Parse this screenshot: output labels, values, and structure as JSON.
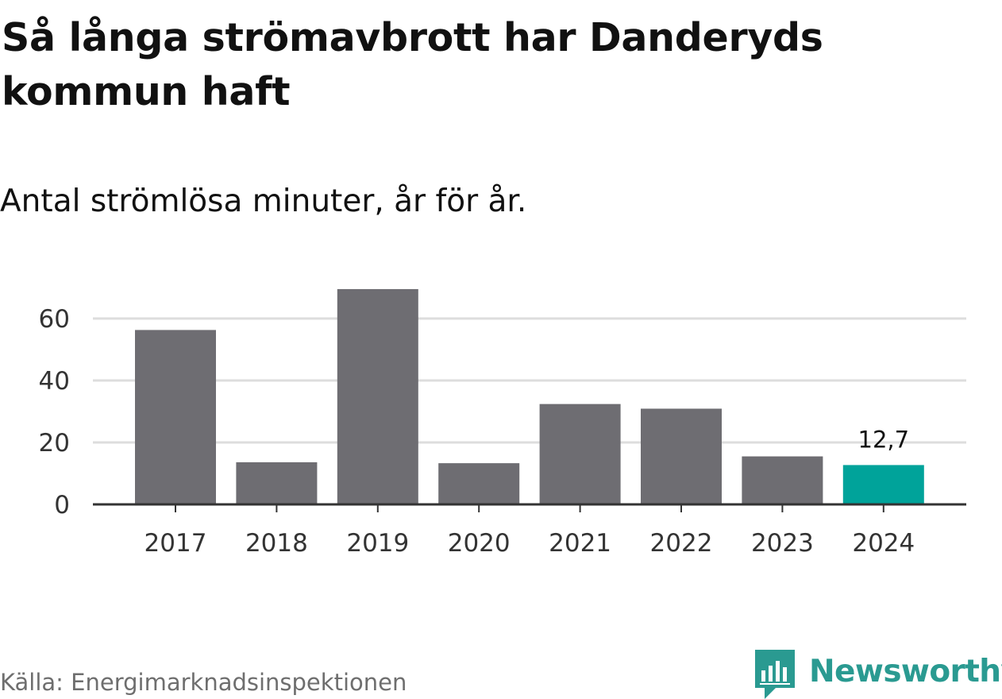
{
  "title": "Så långa strömavbrott har Danderyds kommun haft",
  "subtitle": "Antal strömlösa minuter, år för år.",
  "source": "Källa: Energimarknadsinspektionen",
  "brand": {
    "name": "Newsworthy",
    "color": "#2a9a91"
  },
  "colors": {
    "bar": "#6e6d72",
    "highlight": "#00a39a",
    "grid": "#dddddd",
    "axis": "#333333",
    "tick_text": "#333333"
  },
  "chart_data": {
    "type": "bar",
    "title": "Så långa strömavbrott har Danderyds kommun haft",
    "subtitle": "Antal strömlösa minuter, år för år.",
    "xlabel": "",
    "ylabel": "",
    "categories": [
      "2017",
      "2018",
      "2019",
      "2020",
      "2021",
      "2022",
      "2023",
      "2024"
    ],
    "values": [
      56.3,
      13.6,
      69.5,
      13.3,
      32.4,
      30.9,
      15.5,
      12.7
    ],
    "highlight_index": 7,
    "data_labels": [
      {
        "index": 7,
        "text": "12,7"
      }
    ],
    "ylim": [
      0,
      72
    ],
    "yticks": [
      0,
      20,
      40,
      60
    ],
    "ytick_labels": [
      "0",
      "20",
      "40",
      "60"
    ],
    "grid": true,
    "legend": "none"
  }
}
